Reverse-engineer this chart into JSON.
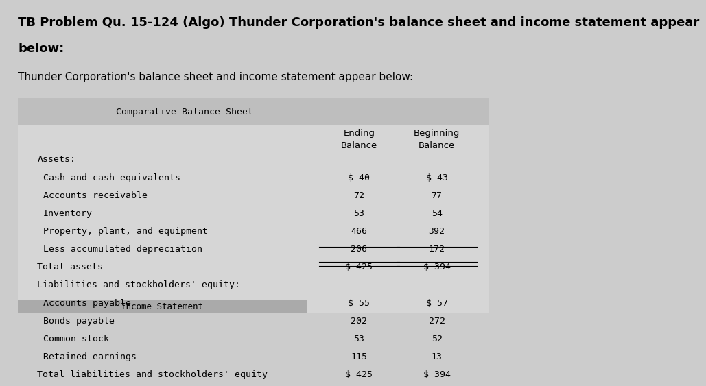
{
  "title_line1": "TB Problem Qu. 15-124 (Algo) Thunder Corporation's balance sheet and income statement appear",
  "title_line2": "below:",
  "subtitle": "Thunder Corporation's balance sheet and income statement appear below:",
  "table_title": "Comparative Balance Sheet",
  "section1_label": "Assets:",
  "section1_rows": [
    [
      "Cash and cash equivalents",
      "$ 40",
      "$ 43"
    ],
    [
      "Accounts receivable",
      "72",
      "77"
    ],
    [
      "Inventory",
      "53",
      "54"
    ],
    [
      "Property, plant, and equipment",
      "466",
      "392"
    ],
    [
      "Less accumulated depreciation",
      "206",
      "172"
    ]
  ],
  "total1_label": "Total assets",
  "total1_values": [
    "$ 425",
    "$ 394"
  ],
  "section2_label": "Liabilities and stockholders' equity:",
  "section2_rows": [
    [
      "Accounts payable",
      "$ 55",
      "$ 57"
    ],
    [
      "Bonds payable",
      "202",
      "272"
    ],
    [
      "Common stock",
      "53",
      "52"
    ],
    [
      "Retained earnings",
      "115",
      "13"
    ]
  ],
  "total2_label": "Total liabilities and stockholders' equity",
  "total2_values": [
    "$ 425",
    "$ 394"
  ],
  "income_label": "Income Statement",
  "page_bg": "#cccccc",
  "table_bg": "#d6d6d6",
  "header_bg": "#bebebe",
  "income_bar_color": "#aaaaaa",
  "font_size_title": 13,
  "font_size_subtitle": 11,
  "font_size_table": 9.5,
  "font_size_income": 9
}
